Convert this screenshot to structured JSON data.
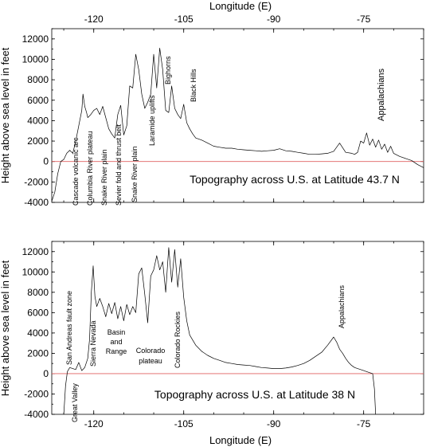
{
  "chart_data": [
    {
      "type": "line",
      "title": "Topography across U.S. at Latitude 43.7 N",
      "xlabel": "Longitude (E)",
      "ylabel": "Height above sea level in feet",
      "xlim": [
        -127,
        -65
      ],
      "ylim": [
        -4000,
        13000
      ],
      "xticks": [
        -120,
        -105,
        -90,
        -75
      ],
      "xtick_labels": [
        "-120",
        "-105",
        "-90",
        "-75"
      ],
      "yticks": [
        -4000,
        -2000,
        0,
        2000,
        4000,
        6000,
        8000,
        10000,
        12000
      ],
      "ytick_labels": [
        "-4000",
        "-2000",
        "0",
        "2000",
        "4000",
        "6000",
        "8000",
        "10000",
        "12000"
      ],
      "series": [
        {
          "x": [
            -127,
            -126.5,
            -126,
            -125.5,
            -125,
            -124.5,
            -124,
            -123.5,
            -123,
            -122.5,
            -122,
            -121.8,
            -121.5,
            -121.2,
            -121,
            -120.5,
            -120,
            -119.5,
            -119,
            -118.5,
            -118,
            -117.5,
            -117,
            -116.5,
            -116,
            -115.5,
            -115,
            -114.5,
            -114,
            -113.5,
            -113,
            -112.5,
            -112,
            -111.5,
            -111,
            -110.5,
            -110,
            -109.5,
            -109,
            -108.5,
            -108,
            -107.5,
            -107,
            -106.5,
            -106,
            -105.5,
            -105,
            -104.5,
            -104,
            -103.5,
            -103,
            -102,
            -101,
            -100,
            -99,
            -98,
            -97,
            -96,
            -95,
            -94,
            -93,
            -92,
            -91,
            -90,
            -89,
            -88,
            -87,
            -86,
            -85,
            -84,
            -83,
            -82,
            -81,
            -80,
            -79,
            -78,
            -77,
            -76.5,
            -76,
            -75.5,
            -75,
            -74.5,
            -74,
            -73.5,
            -73,
            -72.5,
            -72,
            -71.5,
            -71,
            -70.5,
            -70,
            -69,
            -68,
            -67,
            -66,
            -65
          ],
          "y": [
            -3900,
            -3000,
            -1200,
            0,
            200,
            800,
            1100,
            800,
            2000,
            3500,
            5000,
            6600,
            5400,
            4800,
            4300,
            4600,
            5000,
            5200,
            4600,
            5400,
            4300,
            3200,
            2700,
            2300,
            4600,
            5500,
            2600,
            3500,
            7400,
            7200,
            10500,
            9000,
            6600,
            5200,
            5800,
            6600,
            10500,
            7200,
            11100,
            9000,
            5000,
            4800,
            7400,
            5200,
            4600,
            4200,
            5600,
            3800,
            3200,
            2700,
            2300,
            2100,
            1800,
            1500,
            1400,
            1300,
            1300,
            1200,
            1150,
            1100,
            1050,
            1000,
            1050,
            1100,
            1250,
            1050,
            1000,
            900,
            800,
            700,
            700,
            750,
            800,
            1000,
            1800,
            900,
            800,
            700,
            900,
            2000,
            1800,
            2800,
            1600,
            2200,
            1400,
            2100,
            1200,
            1700,
            900,
            1500,
            800,
            500,
            300,
            100,
            -300,
            -600
          ]
        }
      ],
      "annotations": [
        "Cascade volcanic arc",
        "Columbia River plateau",
        "Snake River plain",
        "Sevier fold and thrust belt",
        "Snake River plain",
        "Laramide uplifts",
        "Bighorns",
        "Black Hills",
        "Appalachians"
      ]
    },
    {
      "type": "line",
      "title": "Topography across U.S. at Latitude 38 N",
      "xlabel": "Longitude (E)",
      "ylabel": "Height above sea level in feet",
      "xlim": [
        -127,
        -65
      ],
      "ylim": [
        -4000,
        13000
      ],
      "xticks": [
        -120,
        -105,
        -90,
        -75
      ],
      "xtick_labels": [
        "-120",
        "-105",
        "-90",
        "-75"
      ],
      "yticks": [
        -4000,
        -2000,
        0,
        2000,
        4000,
        6000,
        8000,
        10000,
        12000
      ],
      "ytick_labels": [
        "-4000",
        "-2000",
        "0",
        "2000",
        "4000",
        "6000",
        "8000",
        "10000",
        "12000"
      ],
      "series": [
        {
          "x": [
            -125,
            -124.7,
            -124.4,
            -124.2,
            -124,
            -123.5,
            -123,
            -122.5,
            -122,
            -121.5,
            -121,
            -120.7,
            -120.4,
            -120.1,
            -119.8,
            -119.5,
            -119,
            -118.5,
            -118,
            -117.5,
            -117,
            -116.5,
            -116,
            -115.5,
            -115,
            -114.5,
            -114,
            -113.5,
            -113,
            -112.5,
            -112,
            -111.5,
            -111,
            -110.5,
            -110,
            -109.5,
            -109,
            -108.5,
            -108,
            -107.5,
            -107,
            -106.5,
            -106,
            -105.5,
            -105,
            -104.5,
            -104,
            -103,
            -102,
            -101,
            -100,
            -99,
            -98,
            -97,
            -96,
            -95,
            -94,
            -93,
            -92,
            -91,
            -90,
            -89,
            -88,
            -87,
            -86,
            -85,
            -84,
            -83,
            -82,
            -81,
            -80,
            -79.5,
            -79,
            -78.5,
            -78,
            -77.5,
            -77,
            -76.5,
            -76,
            -75.5,
            -75,
            -74.5,
            -74,
            -73.5,
            -73.2,
            -73
          ],
          "y": [
            -4000,
            -1200,
            200,
            400,
            600,
            500,
            400,
            1100,
            300,
            600,
            1500,
            3400,
            8000,
            10600,
            7600,
            6600,
            7400,
            6600,
            5600,
            6900,
            5900,
            7000,
            5400,
            6600,
            5200,
            6800,
            5800,
            6600,
            6000,
            9800,
            10400,
            7800,
            5000,
            9600,
            10200,
            11600,
            10200,
            11000,
            8000,
            12400,
            9000,
            12200,
            8500,
            11300,
            7500,
            5200,
            3800,
            2800,
            2200,
            1800,
            1500,
            1300,
            1100,
            1000,
            900,
            850,
            800,
            700,
            600,
            550,
            500,
            500,
            550,
            650,
            800,
            1000,
            1300,
            1700,
            2100,
            2800,
            3600,
            3100,
            2400,
            2000,
            1500,
            1100,
            800,
            600,
            500,
            400,
            300,
            200,
            100,
            0,
            -1500,
            -4000
          ]
        }
      ],
      "annotations": [
        "San Andreas fault zone",
        "Great Valley",
        "Sierra Nevada",
        "Basin and Range",
        "Colorado plateau",
        "Colorado Rockies",
        "Appalachians"
      ]
    }
  ]
}
